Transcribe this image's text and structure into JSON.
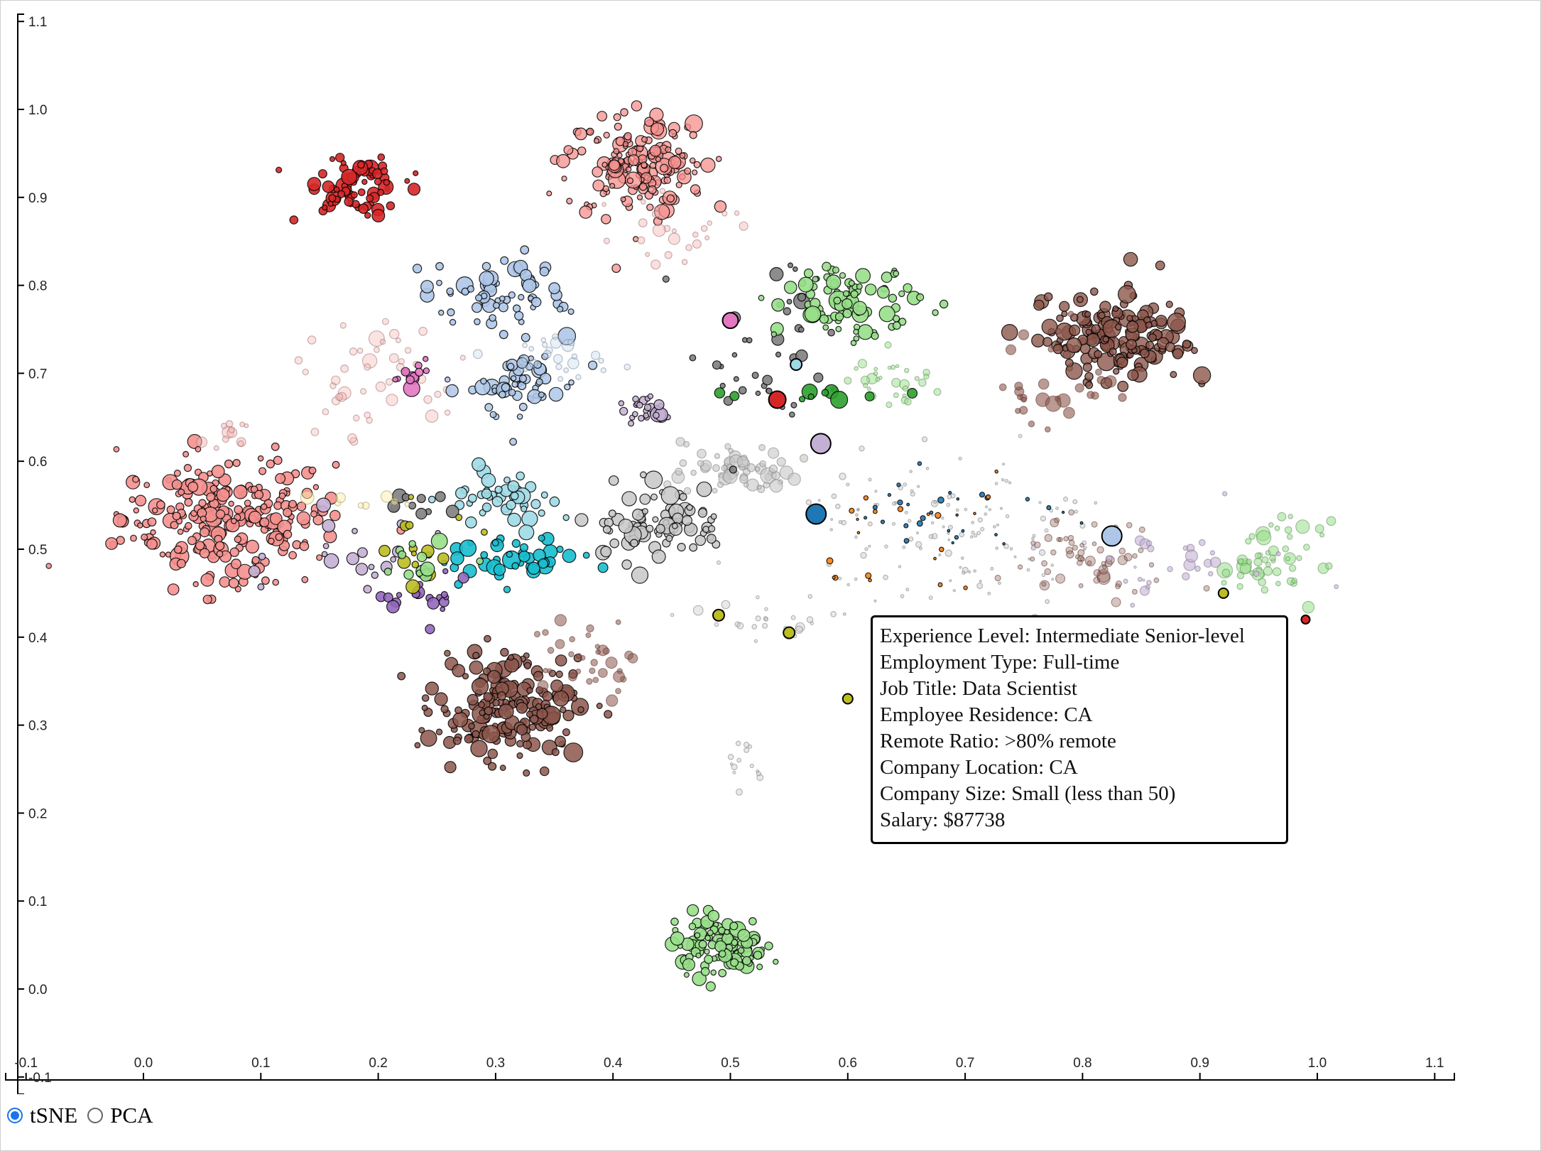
{
  "chart_data": {
    "type": "scatter",
    "projection": "tSNE",
    "xlim": [
      -0.1,
      1.1
    ],
    "ylim": [
      -0.1,
      1.1
    ],
    "x_ticks": [
      "-0.1",
      "0.0",
      "0.1",
      "0.2",
      "0.3",
      "0.4",
      "0.5",
      "0.6",
      "0.7",
      "0.8",
      "0.9",
      "1.0",
      "1.1"
    ],
    "y_ticks": [
      "-0.1",
      "0.0",
      "0.1",
      "0.2",
      "0.3",
      "0.4",
      "0.5",
      "0.6",
      "0.7",
      "0.8",
      "0.9",
      "1.0",
      "1.1"
    ],
    "clusters": [
      {
        "cx": 0.072,
        "cy": 0.535,
        "sx": 0.045,
        "sy": 0.035,
        "n": 260,
        "color": "#f4908e",
        "r": 0.9,
        "op": 0.9
      },
      {
        "cx": 0.178,
        "cy": 0.915,
        "sx": 0.022,
        "sy": 0.016,
        "n": 75,
        "color": "#d62728",
        "r": 0.85,
        "op": 0.9
      },
      {
        "cx": 0.42,
        "cy": 0.94,
        "sx": 0.03,
        "sy": 0.03,
        "n": 170,
        "color": "#f4908e",
        "r": 0.85,
        "op": 0.75
      },
      {
        "cx": 0.45,
        "cy": 0.86,
        "sx": 0.03,
        "sy": 0.02,
        "n": 25,
        "color": "#f7b6b5",
        "r": 0.7,
        "op": 0.45
      },
      {
        "cx": 0.3,
        "cy": 0.79,
        "sx": 0.03,
        "sy": 0.022,
        "n": 65,
        "color": "#aec7e8",
        "r": 0.9,
        "op": 0.9
      },
      {
        "cx": 0.2,
        "cy": 0.7,
        "sx": 0.035,
        "sy": 0.035,
        "n": 45,
        "color": "#f7b6b5",
        "r": 0.85,
        "op": 0.4
      },
      {
        "cx": 0.225,
        "cy": 0.7,
        "sx": 0.01,
        "sy": 0.01,
        "n": 12,
        "color": "#e377c2",
        "r": 0.9,
        "op": 0.9
      },
      {
        "cx": 0.325,
        "cy": 0.685,
        "sx": 0.022,
        "sy": 0.02,
        "n": 55,
        "color": "#aec7e8",
        "r": 0.9,
        "op": 0.85
      },
      {
        "cx": 0.36,
        "cy": 0.72,
        "sx": 0.02,
        "sy": 0.012,
        "n": 25,
        "color": "#c6d9f1",
        "r": 0.8,
        "op": 0.4
      },
      {
        "cx": 0.3,
        "cy": 0.555,
        "sx": 0.025,
        "sy": 0.015,
        "n": 45,
        "color": "#9edae5",
        "r": 1.0,
        "op": 0.9
      },
      {
        "cx": 0.31,
        "cy": 0.49,
        "sx": 0.03,
        "sy": 0.015,
        "n": 45,
        "color": "#17becf",
        "r": 1.0,
        "op": 0.9
      },
      {
        "cx": 0.23,
        "cy": 0.55,
        "sx": 0.02,
        "sy": 0.01,
        "n": 10,
        "color": "#7f7f7f",
        "r": 1.0,
        "op": 0.9
      },
      {
        "cx": 0.2,
        "cy": 0.49,
        "sx": 0.04,
        "sy": 0.025,
        "n": 20,
        "color": "#c5b0d5",
        "r": 0.9,
        "op": 0.9
      },
      {
        "cx": 0.24,
        "cy": 0.44,
        "sx": 0.02,
        "sy": 0.012,
        "n": 20,
        "color": "#9467bd",
        "r": 0.8,
        "op": 0.9
      },
      {
        "cx": 0.24,
        "cy": 0.5,
        "sx": 0.03,
        "sy": 0.02,
        "n": 14,
        "color": "#bcbd22",
        "r": 0.8,
        "op": 0.9
      },
      {
        "cx": 0.235,
        "cy": 0.48,
        "sx": 0.02,
        "sy": 0.02,
        "n": 12,
        "color": "#98df8a",
        "r": 1.0,
        "op": 0.9
      },
      {
        "cx": 0.31,
        "cy": 0.32,
        "sx": 0.03,
        "sy": 0.028,
        "n": 190,
        "color": "#8c564b",
        "r": 0.95,
        "op": 0.85
      },
      {
        "cx": 0.38,
        "cy": 0.37,
        "sx": 0.025,
        "sy": 0.025,
        "n": 35,
        "color": "#8c564b",
        "r": 0.8,
        "op": 0.55
      },
      {
        "cx": 0.43,
        "cy": 0.66,
        "sx": 0.013,
        "sy": 0.01,
        "n": 30,
        "color": "#c5b0d5",
        "r": 0.85,
        "op": 0.85
      },
      {
        "cx": 0.51,
        "cy": 0.59,
        "sx": 0.025,
        "sy": 0.015,
        "n": 60,
        "color": "#c7c7c7",
        "r": 0.8,
        "op": 0.6
      },
      {
        "cx": 0.44,
        "cy": 0.53,
        "sx": 0.028,
        "sy": 0.022,
        "n": 85,
        "color": "#c7c7c7",
        "r": 0.95,
        "op": 0.85
      },
      {
        "cx": 0.53,
        "cy": 0.73,
        "sx": 0.035,
        "sy": 0.05,
        "n": 40,
        "color": "#7f7f7f",
        "r": 0.8,
        "op": 0.9
      },
      {
        "cx": 0.6,
        "cy": 0.78,
        "sx": 0.03,
        "sy": 0.018,
        "n": 85,
        "color": "#98df8a",
        "r": 0.9,
        "op": 0.9
      },
      {
        "cx": 0.64,
        "cy": 0.69,
        "sx": 0.02,
        "sy": 0.015,
        "n": 30,
        "color": "#98df8a",
        "r": 0.55,
        "op": 0.5
      },
      {
        "cx": 0.58,
        "cy": 0.67,
        "sx": 0.03,
        "sy": 0.01,
        "n": 10,
        "color": "#2ca02c",
        "r": 0.9,
        "op": 0.9
      },
      {
        "cx": 0.83,
        "cy": 0.74,
        "sx": 0.03,
        "sy": 0.025,
        "n": 170,
        "color": "#8c564b",
        "r": 0.95,
        "op": 0.8
      },
      {
        "cx": 0.78,
        "cy": 0.69,
        "sx": 0.025,
        "sy": 0.03,
        "n": 30,
        "color": "#8c564b",
        "r": 0.85,
        "op": 0.6
      },
      {
        "cx": 0.49,
        "cy": 0.05,
        "sx": 0.02,
        "sy": 0.016,
        "n": 120,
        "color": "#98df8a",
        "r": 0.85,
        "op": 0.9
      },
      {
        "cx": 0.69,
        "cy": 0.52,
        "sx": 0.07,
        "sy": 0.04,
        "n": 140,
        "color": "#c7c7c7",
        "r": 0.35,
        "op": 0.45
      },
      {
        "cx": 0.67,
        "cy": 0.53,
        "sx": 0.05,
        "sy": 0.03,
        "n": 30,
        "color": "#1f77b4",
        "r": 0.4,
        "op": 0.9
      },
      {
        "cx": 0.66,
        "cy": 0.52,
        "sx": 0.05,
        "sy": 0.035,
        "n": 20,
        "color": "#ff7f0e",
        "r": 0.4,
        "op": 0.9
      },
      {
        "cx": 0.81,
        "cy": 0.49,
        "sx": 0.03,
        "sy": 0.02,
        "n": 60,
        "color": "#8c564b",
        "r": 0.7,
        "op": 0.35
      },
      {
        "cx": 0.96,
        "cy": 0.49,
        "sx": 0.022,
        "sy": 0.02,
        "n": 55,
        "color": "#98df8a",
        "r": 0.75,
        "op": 0.55
      },
      {
        "cx": 0.88,
        "cy": 0.48,
        "sx": 0.05,
        "sy": 0.03,
        "n": 30,
        "color": "#c5b0d5",
        "r": 0.7,
        "op": 0.6
      },
      {
        "cx": 0.51,
        "cy": 0.26,
        "sx": 0.01,
        "sy": 0.015,
        "n": 14,
        "color": "#c7c7c7",
        "r": 0.4,
        "op": 0.4
      },
      {
        "cx": 0.52,
        "cy": 0.42,
        "sx": 0.03,
        "sy": 0.012,
        "n": 25,
        "color": "#c7c7c7",
        "r": 0.5,
        "op": 0.4
      },
      {
        "cx": 0.2,
        "cy": 0.555,
        "sx": 0.02,
        "sy": 0.01,
        "n": 8,
        "color": "#ffeeaa",
        "r": 0.8,
        "op": 0.5
      },
      {
        "cx": 0.07,
        "cy": 0.63,
        "sx": 0.012,
        "sy": 0.01,
        "n": 12,
        "color": "#f7b6b5",
        "r": 0.7,
        "op": 0.5
      }
    ],
    "highlights": [
      {
        "x": 0.577,
        "y": 0.62,
        "r": 14,
        "color": "#c5b0d5"
      },
      {
        "x": 0.573,
        "y": 0.54,
        "r": 14,
        "color": "#1f77b4"
      },
      {
        "x": 0.825,
        "y": 0.515,
        "r": 14,
        "color": "#aec7e8"
      },
      {
        "x": 0.54,
        "y": 0.67,
        "r": 12,
        "color": "#d62728"
      },
      {
        "x": 0.6,
        "y": 0.33,
        "r": 7,
        "color": "#bcbd22"
      },
      {
        "x": 0.55,
        "y": 0.405,
        "r": 8,
        "color": "#bcbd22"
      },
      {
        "x": 0.49,
        "y": 0.425,
        "r": 8,
        "color": "#bcbd22"
      },
      {
        "x": 0.556,
        "y": 0.71,
        "r": 8,
        "color": "#9edae5"
      },
      {
        "x": 0.5,
        "y": 0.76,
        "r": 11,
        "color": "#e377c2"
      },
      {
        "x": 0.92,
        "y": 0.45,
        "r": 7,
        "color": "#bcbd22"
      },
      {
        "x": 0.99,
        "y": 0.42,
        "r": 6,
        "color": "#d62728"
      }
    ],
    "tooltip": [
      "Experience Level: Intermediate Senior-level",
      "Employment Type: Full-time",
      "Job Title: Data Scientist",
      "Employee Residence: CA",
      "Remote Ratio: >80% remote",
      "Company Location: CA",
      "Company Size: Small (less than 50)",
      "Salary: $87738"
    ]
  },
  "controls": {
    "options": [
      {
        "label": "tSNE",
        "checked": true
      },
      {
        "label": "PCA",
        "checked": false
      }
    ]
  }
}
